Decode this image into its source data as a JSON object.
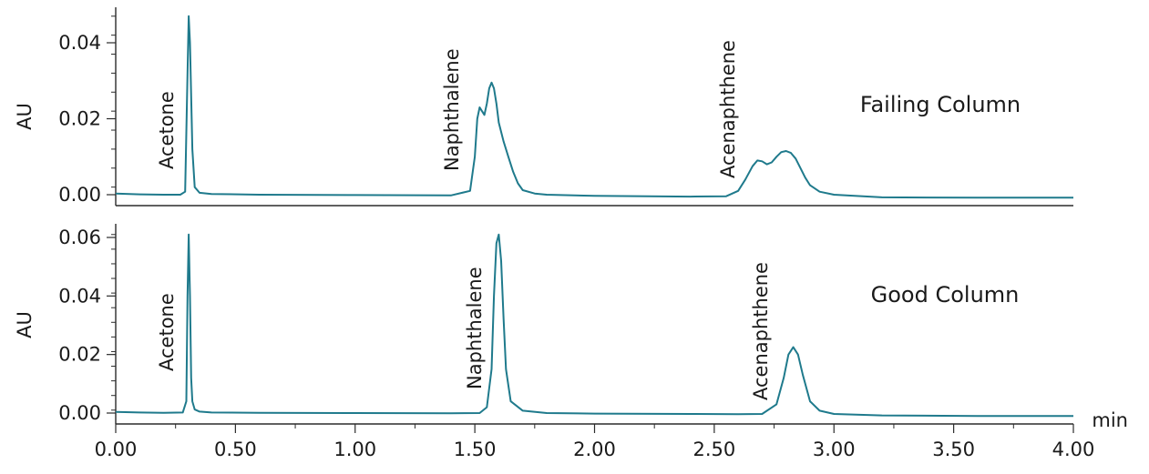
{
  "chart_data": [
    {
      "type": "line",
      "title": "Failing Column",
      "xlabel": "",
      "ylabel": "AU",
      "xlim": [
        0,
        4
      ],
      "ylim": [
        -0.003,
        0.048
      ],
      "yticks": [
        0.0,
        0.02,
        0.04
      ],
      "ytick_labels": [
        "0.00",
        "0.02",
        "0.04"
      ],
      "color": "#1f7a8c",
      "series": [
        {
          "x": [
            0.0,
            0.1,
            0.2,
            0.27,
            0.29,
            0.3,
            0.305,
            0.31,
            0.32,
            0.33,
            0.35,
            0.4,
            0.6,
            1.0,
            1.4,
            1.48,
            1.5,
            1.51,
            1.52,
            1.53,
            1.54,
            1.55,
            1.56,
            1.57,
            1.58,
            1.59,
            1.6,
            1.62,
            1.64,
            1.66,
            1.68,
            1.7,
            1.75,
            1.8,
            2.0,
            2.4,
            2.55,
            2.6,
            2.63,
            2.66,
            2.68,
            2.7,
            2.72,
            2.74,
            2.76,
            2.78,
            2.8,
            2.82,
            2.84,
            2.86,
            2.88,
            2.9,
            2.94,
            3.0,
            3.2,
            3.6,
            4.0
          ],
          "y": [
            0.0003,
            0.0001,
            0.0,
            0.0,
            0.0008,
            0.032,
            0.047,
            0.04,
            0.012,
            0.002,
            0.0005,
            0.0002,
            0.0,
            -0.0001,
            -0.0002,
            0.001,
            0.01,
            0.02,
            0.023,
            0.022,
            0.021,
            0.024,
            0.028,
            0.0295,
            0.028,
            0.024,
            0.019,
            0.014,
            0.01,
            0.006,
            0.003,
            0.0012,
            0.0003,
            0.0,
            -0.0003,
            -0.0005,
            -0.0004,
            0.001,
            0.004,
            0.0075,
            0.009,
            0.0088,
            0.008,
            0.0085,
            0.01,
            0.0112,
            0.0115,
            0.011,
            0.0095,
            0.007,
            0.0045,
            0.0025,
            0.0008,
            0.0,
            -0.0007,
            -0.0008,
            -0.0008
          ]
        }
      ],
      "annotations": [
        {
          "text": "Acetone",
          "x": 0.3
        },
        {
          "text": "Naphthalene",
          "x": 1.55
        },
        {
          "text": "Acenaphthene",
          "x": 2.72
        }
      ]
    },
    {
      "type": "line",
      "title": "Good Column",
      "xlabel": "min",
      "ylabel": "AU",
      "xlim": [
        0,
        4
      ],
      "xticks": [
        0.0,
        0.5,
        1.0,
        1.5,
        2.0,
        2.5,
        3.0,
        3.5,
        4.0
      ],
      "xtick_labels": [
        "0.00",
        "0.50",
        "1.00",
        "1.50",
        "2.00",
        "2.50",
        "3.00",
        "3.50",
        "4.00"
      ],
      "ylim": [
        -0.004,
        0.066
      ],
      "yticks": [
        0.0,
        0.02,
        0.04,
        0.06
      ],
      "ytick_labels": [
        "0.00",
        "0.02",
        "0.04",
        "0.06"
      ],
      "color": "#1f7a8c",
      "series": [
        {
          "x": [
            0.0,
            0.1,
            0.2,
            0.28,
            0.295,
            0.3,
            0.305,
            0.31,
            0.315,
            0.32,
            0.33,
            0.35,
            0.4,
            0.6,
            1.0,
            1.4,
            1.52,
            1.55,
            1.57,
            1.58,
            1.59,
            1.6,
            1.61,
            1.62,
            1.63,
            1.65,
            1.7,
            1.8,
            2.0,
            2.4,
            2.6,
            2.7,
            2.76,
            2.79,
            2.81,
            2.83,
            2.85,
            2.87,
            2.9,
            2.94,
            3.0,
            3.2,
            3.6,
            4.0
          ],
          "y": [
            0.0004,
            0.0002,
            0.0001,
            0.0002,
            0.004,
            0.04,
            0.061,
            0.04,
            0.012,
            0.004,
            0.0012,
            0.0005,
            0.0002,
            0.0001,
            0.0,
            -0.0001,
            0.0,
            0.002,
            0.015,
            0.04,
            0.058,
            0.061,
            0.052,
            0.032,
            0.015,
            0.004,
            0.0008,
            0.0,
            -0.0002,
            -0.0003,
            -0.0004,
            -0.0003,
            0.003,
            0.012,
            0.02,
            0.0225,
            0.02,
            0.013,
            0.004,
            0.0008,
            -0.0003,
            -0.0008,
            -0.001,
            -0.001
          ]
        }
      ],
      "annotations": [
        {
          "text": "Acetone",
          "x": 0.3
        },
        {
          "text": "Naphthalene",
          "x": 1.59
        },
        {
          "text": "Acenaphthene",
          "x": 2.83
        }
      ]
    }
  ]
}
